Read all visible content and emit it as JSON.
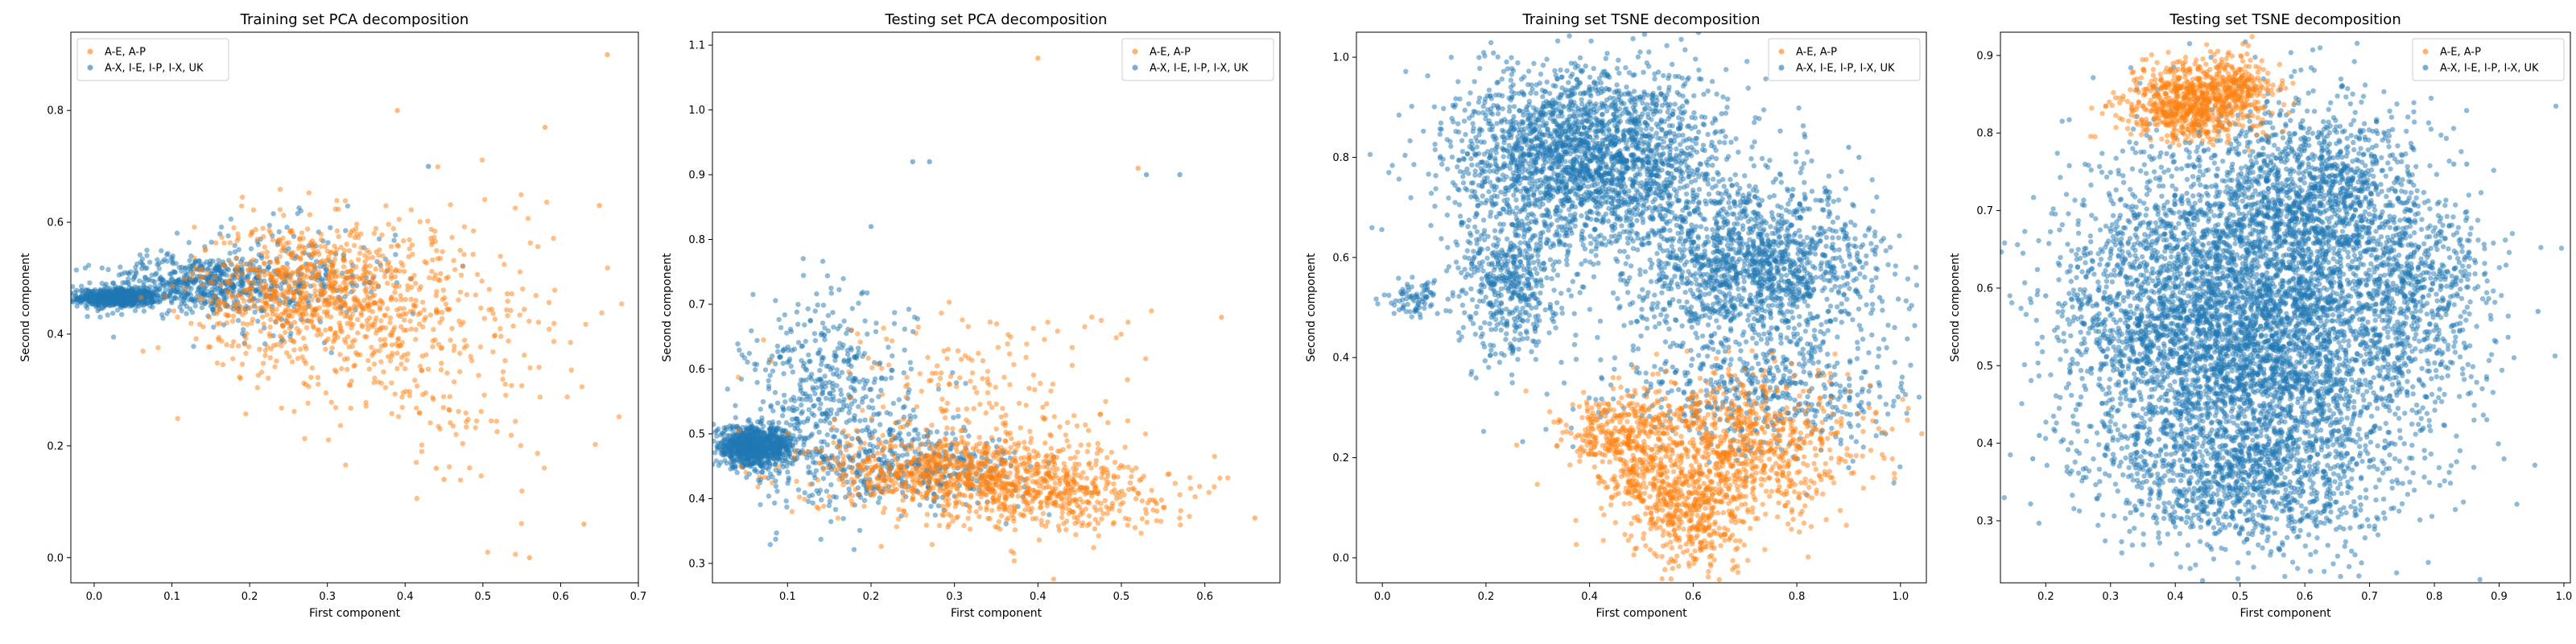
{
  "colors": {
    "series_a": "#ff7f0e",
    "series_b": "#1f77b4"
  },
  "chart_data": [
    {
      "type": "scatter",
      "title": "Training set PCA decomposition",
      "xlabel": "First component",
      "ylabel": "Second component",
      "xlim": [
        -0.03,
        0.7
      ],
      "ylim": [
        -0.045,
        0.94
      ],
      "xticks": [
        "0.0",
        "0.1",
        "0.2",
        "0.3",
        "0.4",
        "0.5",
        "0.6",
        "0.7"
      ],
      "yticks": [
        "0.0",
        "0.2",
        "0.4",
        "0.6",
        "0.8"
      ],
      "legend": {
        "position": "top-left",
        "entries": [
          "A-E, A-P",
          "A-X, I-E, I-P, I-X, UK"
        ]
      },
      "series": [
        {
          "name": "A-E, A-P",
          "clusters": [
            {
              "cx": 0.27,
              "cy": 0.48,
              "sx": 0.07,
              "sy": 0.06,
              "n": 700
            },
            {
              "cx": 0.38,
              "cy": 0.42,
              "sx": 0.09,
              "sy": 0.1,
              "n": 350
            },
            {
              "cx": 0.5,
              "cy": 0.35,
              "sx": 0.08,
              "sy": 0.14,
              "n": 90
            }
          ],
          "points": [
            [
              0.66,
              0.9
            ],
            [
              0.39,
              0.8
            ],
            [
              0.58,
              0.77
            ],
            [
              0.44,
              0.16
            ],
            [
              0.56,
              0.0
            ],
            [
              0.65,
              0.63
            ],
            [
              0.63,
              0.06
            ],
            [
              0.45,
              0.14
            ]
          ]
        },
        {
          "name": "A-X, I-E, I-P, I-X, UK",
          "clusters": [
            {
              "cx": 0.03,
              "cy": 0.465,
              "sx": 0.025,
              "sy": 0.008,
              "n": 700
            },
            {
              "cx": 0.13,
              "cy": 0.49,
              "sx": 0.06,
              "sy": 0.025,
              "n": 500
            },
            {
              "cx": 0.25,
              "cy": 0.5,
              "sx": 0.07,
              "sy": 0.05,
              "n": 250
            }
          ],
          "points": [
            [
              0.43,
              0.7
            ]
          ]
        }
      ]
    },
    {
      "type": "scatter",
      "title": "Testing set PCA decomposition",
      "xlabel": "First component",
      "ylabel": "Second component",
      "xlim": [
        0.01,
        0.69
      ],
      "ylim": [
        0.27,
        1.12
      ],
      "xticks": [
        "0.1",
        "0.2",
        "0.3",
        "0.4",
        "0.5",
        "0.6"
      ],
      "yticks": [
        "0.3",
        "0.4",
        "0.5",
        "0.6",
        "0.7",
        "0.8",
        "0.9",
        "1.0",
        "1.1"
      ],
      "legend": {
        "position": "top-right",
        "entries": [
          "A-E, A-P",
          "A-X, I-E, I-P, I-X, UK"
        ]
      },
      "series": [
        {
          "name": "A-E, A-P",
          "clusters": [
            {
              "cx": 0.3,
              "cy": 0.44,
              "sx": 0.08,
              "sy": 0.03,
              "n": 700
            },
            {
              "cx": 0.42,
              "cy": 0.41,
              "sx": 0.07,
              "sy": 0.03,
              "n": 400
            },
            {
              "cx": 0.32,
              "cy": 0.55,
              "sx": 0.1,
              "sy": 0.08,
              "n": 200
            }
          ],
          "points": [
            [
              0.4,
              1.08
            ],
            [
              0.52,
              0.91
            ],
            [
              0.62,
              0.68
            ],
            [
              0.66,
              0.37
            ]
          ]
        },
        {
          "name": "A-X, I-E, I-P, I-X, UK",
          "clusters": [
            {
              "cx": 0.06,
              "cy": 0.48,
              "sx": 0.025,
              "sy": 0.015,
              "n": 900
            },
            {
              "cx": 0.15,
              "cy": 0.55,
              "sx": 0.05,
              "sy": 0.08,
              "n": 500
            },
            {
              "cx": 0.25,
              "cy": 0.45,
              "sx": 0.07,
              "sy": 0.03,
              "n": 350
            }
          ],
          "points": [
            [
              0.27,
              0.92
            ],
            [
              0.25,
              0.92
            ],
            [
              0.53,
              0.9
            ],
            [
              0.57,
              0.9
            ],
            [
              0.2,
              0.82
            ]
          ]
        }
      ]
    },
    {
      "type": "scatter",
      "title": "Training set TSNE decomposition",
      "xlabel": "First component",
      "ylabel": "Second component",
      "xlim": [
        -0.05,
        1.05
      ],
      "ylim": [
        -0.05,
        1.05
      ],
      "xticks": [
        "0.0",
        "0.2",
        "0.4",
        "0.6",
        "0.8",
        "1.0"
      ],
      "yticks": [
        "0.0",
        "0.2",
        "0.4",
        "0.6",
        "0.8",
        "1.0"
      ],
      "legend": {
        "position": "top-right",
        "entries": [
          "A-E, A-P",
          "A-X, I-E, I-P, I-X, UK"
        ]
      },
      "series": [
        {
          "name": "A-E, A-P",
          "clusters": [
            {
              "cx": 0.68,
              "cy": 0.22,
              "sx": 0.12,
              "sy": 0.07,
              "n": 900
            },
            {
              "cx": 0.6,
              "cy": 0.08,
              "sx": 0.05,
              "sy": 0.05,
              "n": 350
            },
            {
              "cx": 0.45,
              "cy": 0.25,
              "sx": 0.05,
              "sy": 0.04,
              "n": 250
            },
            {
              "cx": 0.5,
              "cy": 0.15,
              "sx": 0.04,
              "sy": 0.04,
              "n": 150
            }
          ],
          "points": []
        },
        {
          "name": "A-X, I-E, I-P, I-X, UK",
          "clusters": [
            {
              "cx": 0.4,
              "cy": 0.8,
              "sx": 0.13,
              "sy": 0.09,
              "n": 2400
            },
            {
              "cx": 0.72,
              "cy": 0.58,
              "sx": 0.12,
              "sy": 0.08,
              "n": 1500
            },
            {
              "cx": 0.25,
              "cy": 0.55,
              "sx": 0.05,
              "sy": 0.08,
              "n": 500
            },
            {
              "cx": 0.75,
              "cy": 0.33,
              "sx": 0.15,
              "sy": 0.06,
              "n": 500
            },
            {
              "cx": 0.06,
              "cy": 0.52,
              "sx": 0.03,
              "sy": 0.02,
              "n": 80
            }
          ],
          "points": [
            [
              0.9,
              0.82
            ],
            [
              0.92,
              0.8
            ],
            [
              0.9,
              0.18
            ],
            [
              0.96,
              0.52
            ]
          ]
        }
      ]
    },
    {
      "type": "scatter",
      "title": "Testing set TSNE decomposition",
      "xlabel": "First component",
      "ylabel": "Second component",
      "xlim": [
        0.13,
        1.01
      ],
      "ylim": [
        0.22,
        0.93
      ],
      "xticks": [
        "0.2",
        "0.3",
        "0.4",
        "0.5",
        "0.6",
        "0.7",
        "0.8",
        "0.9",
        "1.0"
      ],
      "yticks": [
        "0.3",
        "0.4",
        "0.5",
        "0.6",
        "0.7",
        "0.8",
        "0.9"
      ],
      "legend": {
        "position": "top-right",
        "entries": [
          "A-E, A-P",
          "A-X, I-E, I-P, I-X, UK"
        ]
      },
      "series": [
        {
          "name": "A-E, A-P",
          "clusters": [
            {
              "cx": 0.42,
              "cy": 0.84,
              "sx": 0.05,
              "sy": 0.025,
              "n": 700
            },
            {
              "cx": 0.5,
              "cy": 0.86,
              "sx": 0.03,
              "sy": 0.02,
              "n": 200
            }
          ],
          "points": []
        },
        {
          "name": "A-X, I-E, I-P, I-X, UK",
          "clusters": [
            {
              "cx": 0.55,
              "cy": 0.55,
              "sx": 0.13,
              "sy": 0.12,
              "n": 4500
            },
            {
              "cx": 0.38,
              "cy": 0.55,
              "sx": 0.09,
              "sy": 0.1,
              "n": 1200
            },
            {
              "cx": 0.62,
              "cy": 0.72,
              "sx": 0.07,
              "sy": 0.06,
              "n": 800
            },
            {
              "cx": 0.5,
              "cy": 0.35,
              "sx": 0.1,
              "sy": 0.04,
              "n": 700
            },
            {
              "cx": 0.78,
              "cy": 0.6,
              "sx": 0.05,
              "sy": 0.06,
              "n": 400
            }
          ],
          "points": [
            [
              0.85,
              0.76
            ],
            [
              0.83,
              0.76
            ],
            [
              0.96,
              0.57
            ],
            [
              0.2,
              0.59
            ],
            [
              0.22,
              0.58
            ],
            [
              0.18,
              0.38
            ],
            [
              0.19,
              0.41
            ]
          ]
        }
      ]
    }
  ]
}
